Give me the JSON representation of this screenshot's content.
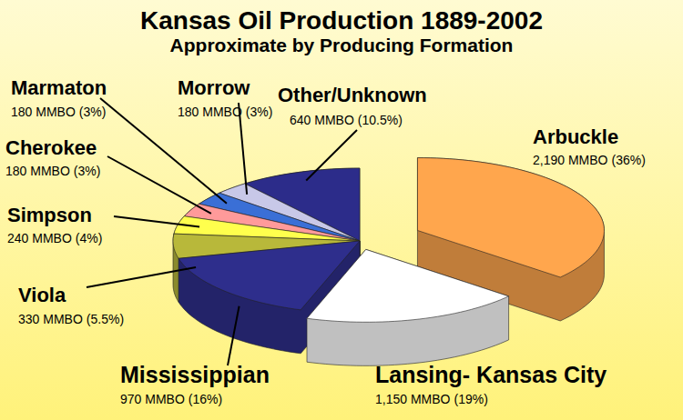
{
  "chart_data": {
    "type": "pie",
    "title": "Kansas Oil Production 1889-2002",
    "subtitle": "Approximate by Producing Formation",
    "categories": [
      "Arbuckle",
      "Lansing- Kansas City",
      "Mississippian",
      "Viola",
      "Simpson",
      "Cherokee",
      "Marmaton",
      "Morrow",
      "Other/Unknown"
    ],
    "values": [
      2190,
      1150,
      970,
      330,
      240,
      180,
      180,
      180,
      640
    ],
    "value_labels": [
      "2,190 MMBO",
      "1,150 MMBO",
      "970 MMBO",
      "330 MMBO",
      "240 MMBO",
      "180 MMBO",
      "180 MMBO",
      "180 MMBO",
      "640 MMBO"
    ],
    "percentages": [
      36,
      19,
      16,
      5.5,
      4,
      3,
      3,
      3,
      10.5
    ],
    "percentage_labels": [
      "(36%)",
      "(19%)",
      "(16%)",
      "(5.5%)",
      "(4%)",
      "(3%)",
      "(3%)",
      "(3%)",
      "(10.5%)"
    ],
    "colors": [
      "#ffa64d",
      "#ffffff",
      "#2e2e8c",
      "#b8b83a",
      "#ffff4d",
      "#ff9a9a",
      "#3a6fd6",
      "#c8c8e8",
      "#2c2c8a"
    ],
    "data_labels": true
  }
}
